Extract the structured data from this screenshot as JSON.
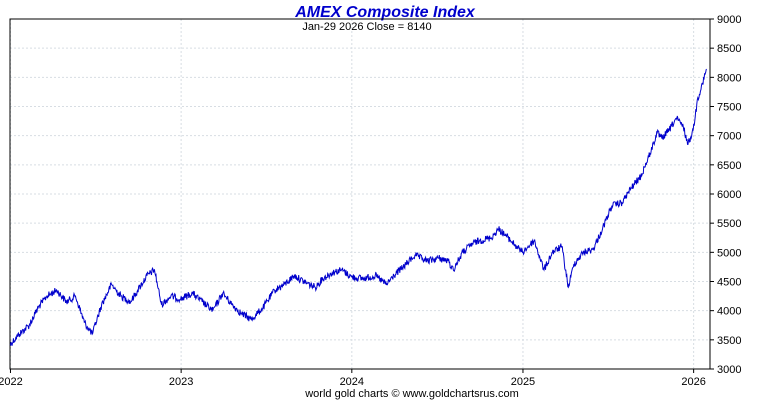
{
  "chart_data": {
    "type": "line",
    "title": "AMEX Composite Index",
    "subtitle": "Jan-29  2026   Close = 8140",
    "credit": "world gold charts © www.goldchartsrus.com",
    "xlabel": "",
    "ylabel": "",
    "x_ticks": [
      "2022",
      "2023",
      "2024",
      "2025",
      "2026"
    ],
    "y_ticks": [
      3000,
      3500,
      4000,
      4500,
      5000,
      5500,
      6000,
      6500,
      7000,
      7500,
      8000,
      8500,
      9000
    ],
    "ylim": [
      3000,
      9000
    ],
    "xlim": [
      "2021-12-31",
      "2026-02-05"
    ],
    "grid": true,
    "colors": {
      "series": "#0000cc",
      "title": "#0000cc",
      "grid": "#d7dde3"
    },
    "series": [
      {
        "x": [
          "2021-12-31",
          "2022-01-20",
          "2022-02-10",
          "2022-03-01",
          "2022-03-20",
          "2022-04-10",
          "2022-05-01",
          "2022-05-20",
          "2022-06-08",
          "2022-06-25",
          "2022-07-15",
          "2022-08-05",
          "2022-08-25",
          "2022-09-15",
          "2022-09-30",
          "2022-10-20",
          "2022-11-05",
          "2022-11-20",
          "2022-12-10",
          "2022-12-31",
          "2023-01-25",
          "2023-02-15",
          "2023-03-10",
          "2023-03-31",
          "2023-04-20",
          "2023-05-10",
          "2023-05-31",
          "2023-06-25",
          "2023-07-20",
          "2023-08-10",
          "2023-08-31",
          "2023-09-20",
          "2023-10-15",
          "2023-10-31",
          "2023-11-20",
          "2023-12-10",
          "2023-12-31",
          "2024-01-25",
          "2024-02-20",
          "2024-03-15",
          "2024-03-31",
          "2024-04-20",
          "2024-05-15",
          "2024-06-10",
          "2024-07-05",
          "2024-07-25",
          "2024-08-05",
          "2024-08-25",
          "2024-09-15",
          "2024-09-30",
          "2024-10-25",
          "2024-11-10",
          "2024-11-30",
          "2024-12-18",
          "2024-12-31",
          "2025-01-25",
          "2025-02-15",
          "2025-03-05",
          "2025-03-25",
          "2025-04-08",
          "2025-04-20",
          "2025-05-10",
          "2025-05-31",
          "2025-06-20",
          "2025-07-10",
          "2025-08-01",
          "2025-08-20",
          "2025-09-10",
          "2025-09-30",
          "2025-10-15",
          "2025-10-25",
          "2025-11-10",
          "2025-11-25",
          "2025-12-10",
          "2025-12-20",
          "2025-12-31",
          "2026-01-10",
          "2026-01-20",
          "2026-01-29"
        ],
        "values": [
          3420,
          3600,
          3750,
          4050,
          4250,
          4350,
          4150,
          4250,
          3800,
          3600,
          4100,
          4450,
          4250,
          4150,
          4350,
          4600,
          4700,
          4100,
          4250,
          4200,
          4300,
          4150,
          4000,
          4300,
          4100,
          3950,
          3850,
          4050,
          4350,
          4450,
          4600,
          4500,
          4400,
          4550,
          4650,
          4700,
          4580,
          4550,
          4600,
          4450,
          4600,
          4750,
          4950,
          4850,
          4900,
          4850,
          4700,
          5000,
          5150,
          5200,
          5250,
          5400,
          5250,
          5100,
          5000,
          5200,
          4700,
          5000,
          5100,
          4400,
          4800,
          5000,
          5050,
          5400,
          5800,
          5850,
          6100,
          6300,
          6700,
          7050,
          6950,
          7100,
          7300,
          7150,
          6850,
          7100,
          7650,
          7900,
          8140
        ]
      }
    ]
  }
}
